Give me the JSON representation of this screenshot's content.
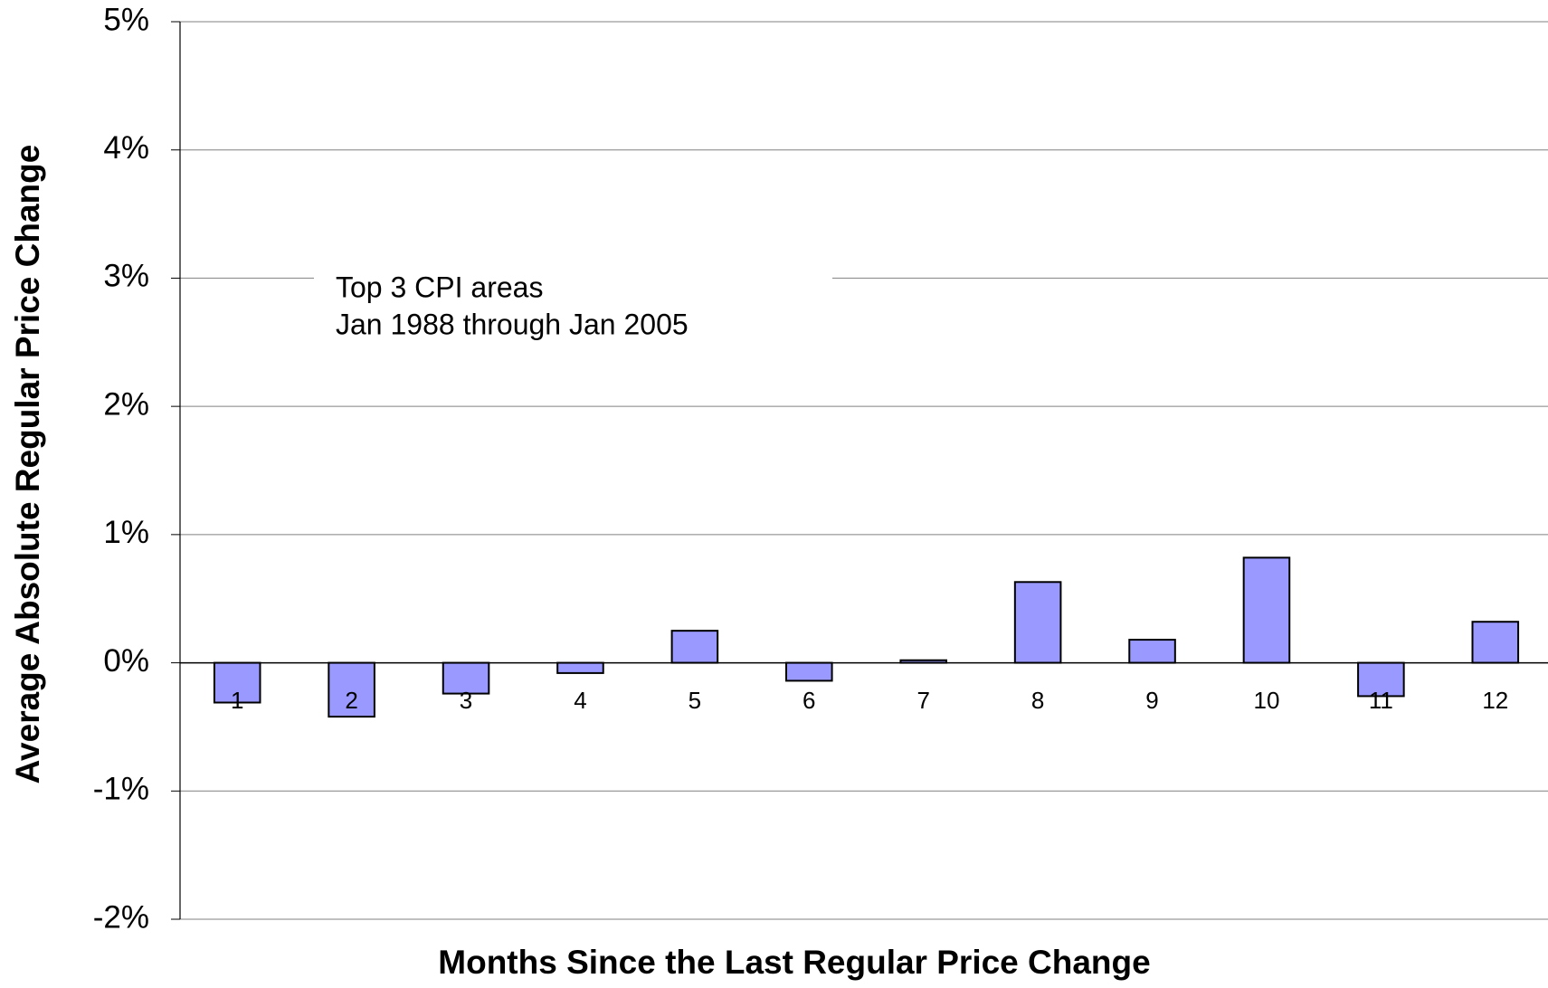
{
  "chart_data": {
    "type": "bar",
    "annotation": [
      "Top 3 CPI areas",
      "Jan 1988 through Jan 2005"
    ],
    "xlabel": "Months Since the Last Regular Price Change",
    "ylabel": "Average Absolute Regular Price Change",
    "categories": [
      "1",
      "2",
      "3",
      "4",
      "5",
      "6",
      "7",
      "8",
      "9",
      "10",
      "11",
      "12"
    ],
    "values": [
      -0.31,
      -0.42,
      -0.24,
      -0.08,
      0.25,
      -0.14,
      0.02,
      0.63,
      0.18,
      0.82,
      -0.26,
      0.32
    ],
    "color": "#9999ff",
    "ylim": [
      -2,
      5
    ],
    "yticks": [
      {
        "value": -2,
        "label": "-2%"
      },
      {
        "value": -1,
        "label": "-1%"
      },
      {
        "value": 0,
        "label": "0%"
      },
      {
        "value": 1,
        "label": "1%"
      },
      {
        "value": 2,
        "label": "2%"
      },
      {
        "value": 3,
        "label": "3%"
      },
      {
        "value": 4,
        "label": "4%"
      },
      {
        "value": 5,
        "label": "5%"
      }
    ],
    "grid": true
  }
}
